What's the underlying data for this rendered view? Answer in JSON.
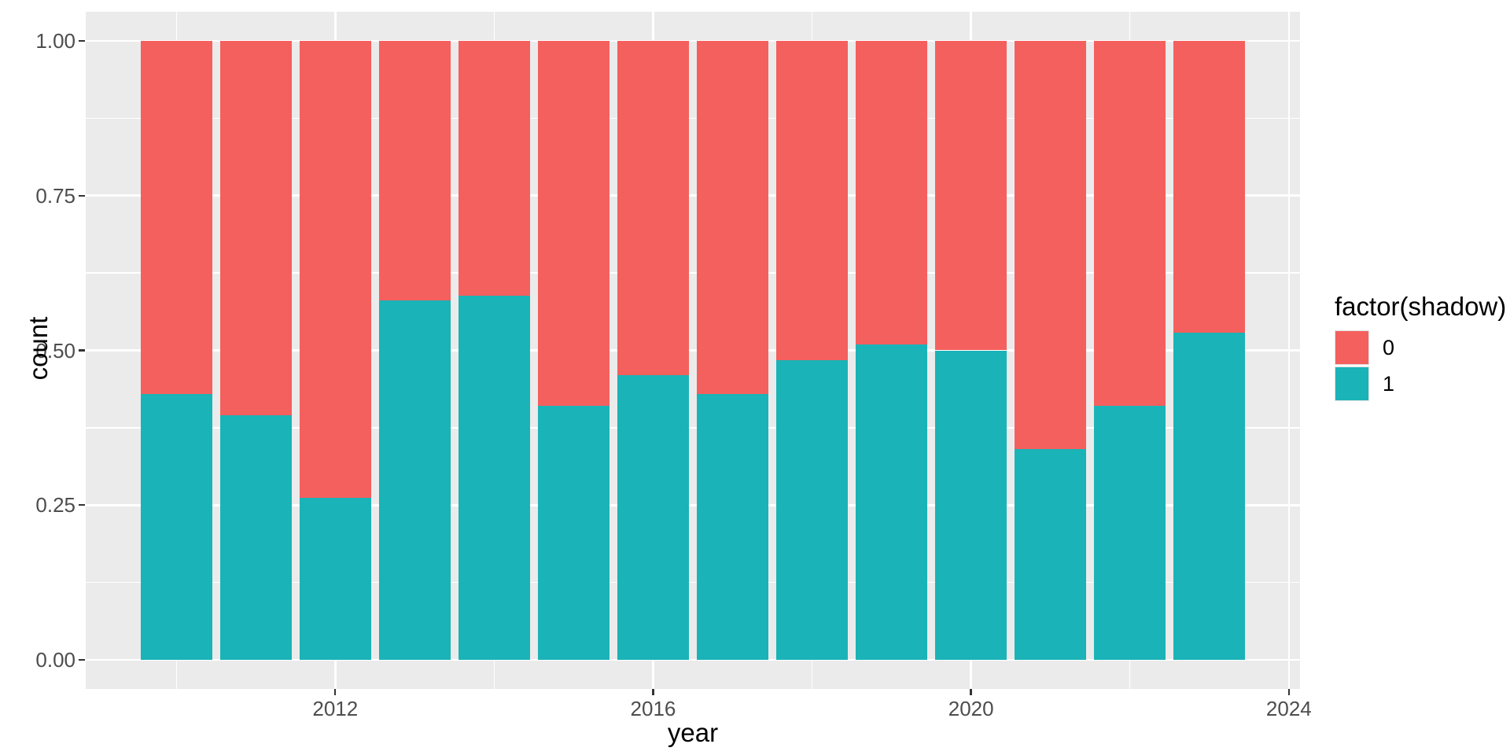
{
  "axes": {
    "x_title": "year",
    "y_title": "count"
  },
  "legend": {
    "title": "factor(shadow)",
    "position": "right",
    "items": [
      {
        "label": "0",
        "color": "#F4605D"
      },
      {
        "label": "1",
        "color": "#1AB3B7"
      }
    ]
  },
  "chart_data": {
    "type": "bar",
    "subtype": "stacked-fill-proportion",
    "title": "",
    "xlabel": "year",
    "ylabel": "count",
    "categories": [
      2010,
      2011,
      2012,
      2013,
      2014,
      2015,
      2016,
      2017,
      2018,
      2019,
      2020,
      2021,
      2022,
      2023
    ],
    "series": [
      {
        "name": "0",
        "color": "#F4605D",
        "values": [
          0.571,
          0.605,
          0.738,
          0.419,
          0.412,
          0.59,
          0.54,
          0.571,
          0.516,
          0.491,
          0.5,
          0.659,
          0.59,
          0.471
        ]
      },
      {
        "name": "1",
        "color": "#1AB3B7",
        "values": [
          0.429,
          0.395,
          0.262,
          0.581,
          0.588,
          0.41,
          0.46,
          0.429,
          0.484,
          0.509,
          0.5,
          0.341,
          0.41,
          0.529
        ]
      }
    ],
    "stack_order_bottom_to_top": [
      "1",
      "0"
    ],
    "bar_width": 0.9,
    "xlim": [
      2008.86,
      2024.14
    ],
    "ylim": [
      -0.047,
      1.047
    ],
    "x_major_ticks": [
      {
        "value": 2012,
        "label": "2012"
      },
      {
        "value": 2016,
        "label": "2016"
      },
      {
        "value": 2020,
        "label": "2020"
      },
      {
        "value": 2024,
        "label": "2024"
      }
    ],
    "x_minor_ticks": [
      2010,
      2014,
      2018,
      2022
    ],
    "y_major_ticks": [
      {
        "value": 0.0,
        "label": "0.00"
      },
      {
        "value": 0.25,
        "label": "0.25"
      },
      {
        "value": 0.5,
        "label": "0.50"
      },
      {
        "value": 0.75,
        "label": "0.75"
      },
      {
        "value": 1.0,
        "label": "1.00"
      }
    ],
    "y_minor_ticks": [
      0.125,
      0.375,
      0.625,
      0.875
    ],
    "grid": true,
    "panel_background": "#EBEBEB",
    "grid_color": "#FFFFFF",
    "tick_color": "#333333",
    "axis_text_color": "#4D4D4D"
  }
}
